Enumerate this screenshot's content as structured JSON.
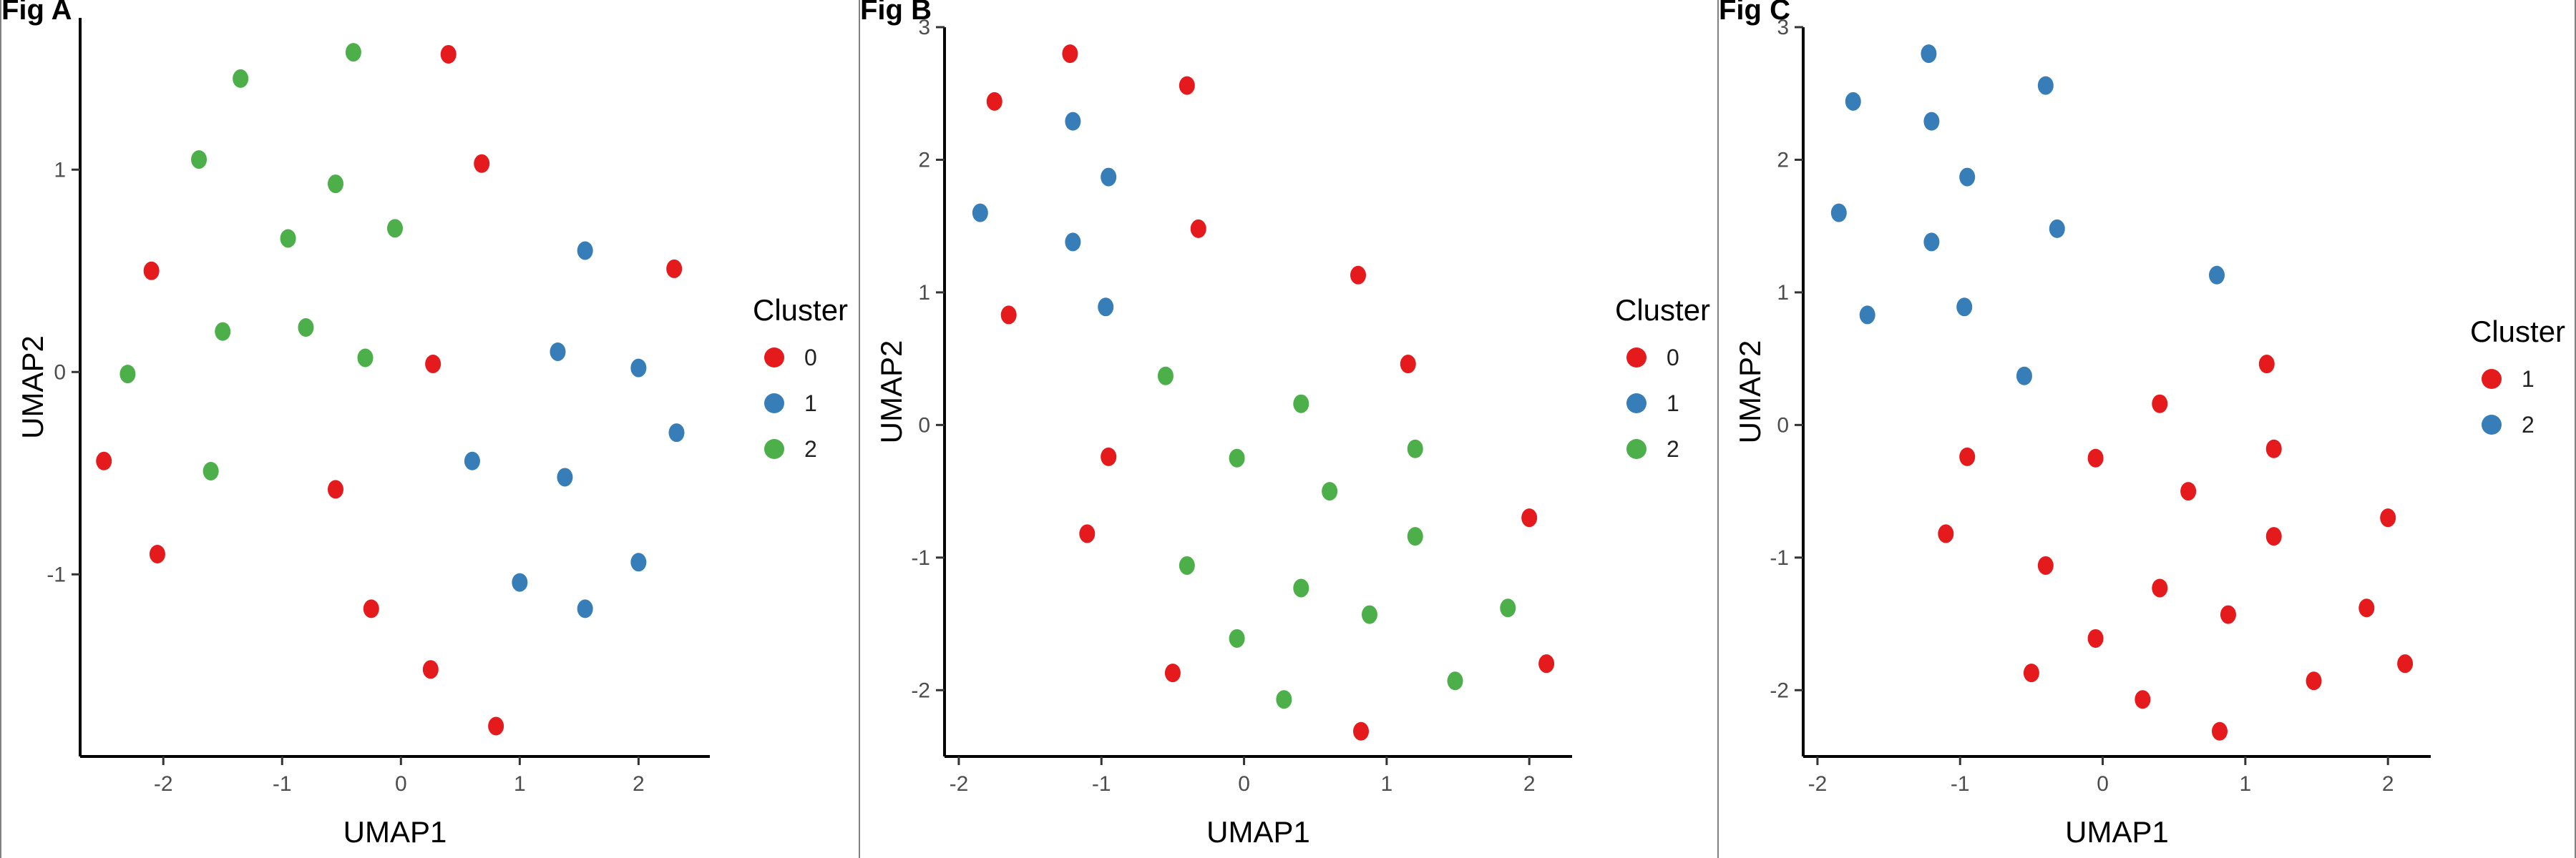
{
  "colors": {
    "0": "#e41a1c",
    "1": "#377eb8",
    "2": "#4daf4a",
    "c_red": "#e41a1c",
    "c_blue": "#377eb8"
  },
  "chart_data": [
    {
      "type": "scatter",
      "panel_label": "Fig A",
      "xlabel": "UMAP1",
      "ylabel": "UMAP2",
      "xlim": [
        -2.7,
        2.6
      ],
      "ylim": [
        -1.9,
        1.75
      ],
      "xticks": [
        -2,
        -1,
        0,
        1,
        2
      ],
      "yticks": [
        -1,
        0,
        1
      ],
      "legend": {
        "title": "Cluster",
        "placement": "right"
      },
      "series": [
        {
          "name": "0",
          "color": "#e41a1c",
          "points": [
            [
              -2.5,
              -0.44
            ],
            [
              -2.05,
              -0.9
            ],
            [
              -2.1,
              0.5
            ],
            [
              -0.55,
              -0.58
            ],
            [
              -0.25,
              -1.17
            ],
            [
              0.27,
              0.04
            ],
            [
              0.4,
              1.57
            ],
            [
              0.68,
              1.03
            ],
            [
              2.3,
              0.51
            ],
            [
              0.25,
              -1.47
            ],
            [
              0.8,
              -1.75
            ]
          ]
        },
        {
          "name": "1",
          "color": "#377eb8",
          "points": [
            [
              0.6,
              -0.44
            ],
            [
              1.32,
              0.1
            ],
            [
              1.38,
              -0.52
            ],
            [
              1.55,
              0.6
            ],
            [
              1.0,
              -1.04
            ],
            [
              1.55,
              -1.17
            ],
            [
              2.0,
              0.02
            ],
            [
              2.0,
              -0.94
            ],
            [
              2.32,
              -0.3
            ]
          ]
        },
        {
          "name": "2",
          "color": "#4daf4a",
          "points": [
            [
              -2.3,
              -0.01
            ],
            [
              -1.6,
              -0.49
            ],
            [
              -1.5,
              0.2
            ],
            [
              -1.7,
              1.05
            ],
            [
              -1.35,
              1.45
            ],
            [
              -0.95,
              0.66
            ],
            [
              -0.8,
              0.22
            ],
            [
              -0.55,
              0.93
            ],
            [
              -0.4,
              1.58
            ],
            [
              -0.3,
              0.07
            ],
            [
              -0.05,
              0.71
            ]
          ]
        }
      ]
    },
    {
      "type": "scatter",
      "panel_label": "Fig B",
      "xlabel": "UMAP1",
      "ylabel": "UMAP2",
      "xlim": [
        -2.1,
        2.3
      ],
      "ylim": [
        -2.5,
        3.0
      ],
      "xticks": [
        -2,
        -1,
        0,
        1,
        2
      ],
      "yticks": [
        -2,
        -1,
        0,
        1,
        2,
        3
      ],
      "legend": {
        "title": "Cluster",
        "placement": "right"
      },
      "series": [
        {
          "name": "0",
          "color": "#e41a1c",
          "points": [
            [
              -1.75,
              2.44
            ],
            [
              -1.22,
              2.8
            ],
            [
              -0.4,
              2.56
            ],
            [
              -1.65,
              0.83
            ],
            [
              -0.32,
              1.48
            ],
            [
              0.8,
              1.13
            ],
            [
              1.15,
              0.46
            ],
            [
              -0.95,
              -0.24
            ],
            [
              -1.1,
              -0.82
            ],
            [
              -0.5,
              -1.87
            ],
            [
              0.82,
              -2.31
            ],
            [
              2.0,
              -0.7
            ],
            [
              2.12,
              -1.8
            ]
          ]
        },
        {
          "name": "1",
          "color": "#377eb8",
          "points": [
            [
              -1.85,
              1.6
            ],
            [
              -1.2,
              2.29
            ],
            [
              -0.95,
              1.87
            ],
            [
              -1.2,
              1.38
            ],
            [
              -0.97,
              0.89
            ]
          ]
        },
        {
          "name": "2",
          "color": "#4daf4a",
          "points": [
            [
              -0.55,
              0.37
            ],
            [
              0.4,
              0.16
            ],
            [
              1.2,
              -0.18
            ],
            [
              -0.05,
              -0.25
            ],
            [
              0.6,
              -0.5
            ],
            [
              1.2,
              -0.84
            ],
            [
              -0.4,
              -1.06
            ],
            [
              0.4,
              -1.23
            ],
            [
              0.88,
              -1.43
            ],
            [
              -0.05,
              -1.61
            ],
            [
              1.85,
              -1.38
            ],
            [
              1.48,
              -1.93
            ],
            [
              0.28,
              -2.07
            ]
          ]
        }
      ]
    },
    {
      "type": "scatter",
      "panel_label": "Fig C",
      "xlabel": "UMAP1",
      "ylabel": "UMAP2",
      "xlim": [
        -2.1,
        2.3
      ],
      "ylim": [
        -2.5,
        3.0
      ],
      "xticks": [
        -2,
        -1,
        0,
        1,
        2
      ],
      "yticks": [
        -2,
        -1,
        0,
        1,
        2,
        3
      ],
      "legend": {
        "title": "Cluster",
        "placement": "right"
      },
      "series": [
        {
          "name": "1",
          "color": "#e41a1c",
          "points": [
            [
              1.15,
              0.46
            ],
            [
              0.4,
              0.16
            ],
            [
              1.2,
              -0.18
            ],
            [
              -0.95,
              -0.24
            ],
            [
              -0.05,
              -0.25
            ],
            [
              0.6,
              -0.5
            ],
            [
              -1.1,
              -0.82
            ],
            [
              1.2,
              -0.84
            ],
            [
              2.0,
              -0.7
            ],
            [
              -0.4,
              -1.06
            ],
            [
              0.4,
              -1.23
            ],
            [
              0.88,
              -1.43
            ],
            [
              -0.05,
              -1.61
            ],
            [
              1.85,
              -1.38
            ],
            [
              -0.5,
              -1.87
            ],
            [
              1.48,
              -1.93
            ],
            [
              0.28,
              -2.07
            ],
            [
              2.12,
              -1.8
            ],
            [
              0.82,
              -2.31
            ]
          ]
        },
        {
          "name": "2",
          "color": "#377eb8",
          "points": [
            [
              -1.22,
              2.8
            ],
            [
              -1.75,
              2.44
            ],
            [
              -1.2,
              2.29
            ],
            [
              -0.4,
              2.56
            ],
            [
              -0.95,
              1.87
            ],
            [
              -1.85,
              1.6
            ],
            [
              -1.2,
              1.38
            ],
            [
              -0.32,
              1.48
            ],
            [
              -1.65,
              0.83
            ],
            [
              -0.97,
              0.89
            ],
            [
              0.8,
              1.13
            ],
            [
              -0.55,
              0.37
            ]
          ]
        }
      ]
    }
  ]
}
